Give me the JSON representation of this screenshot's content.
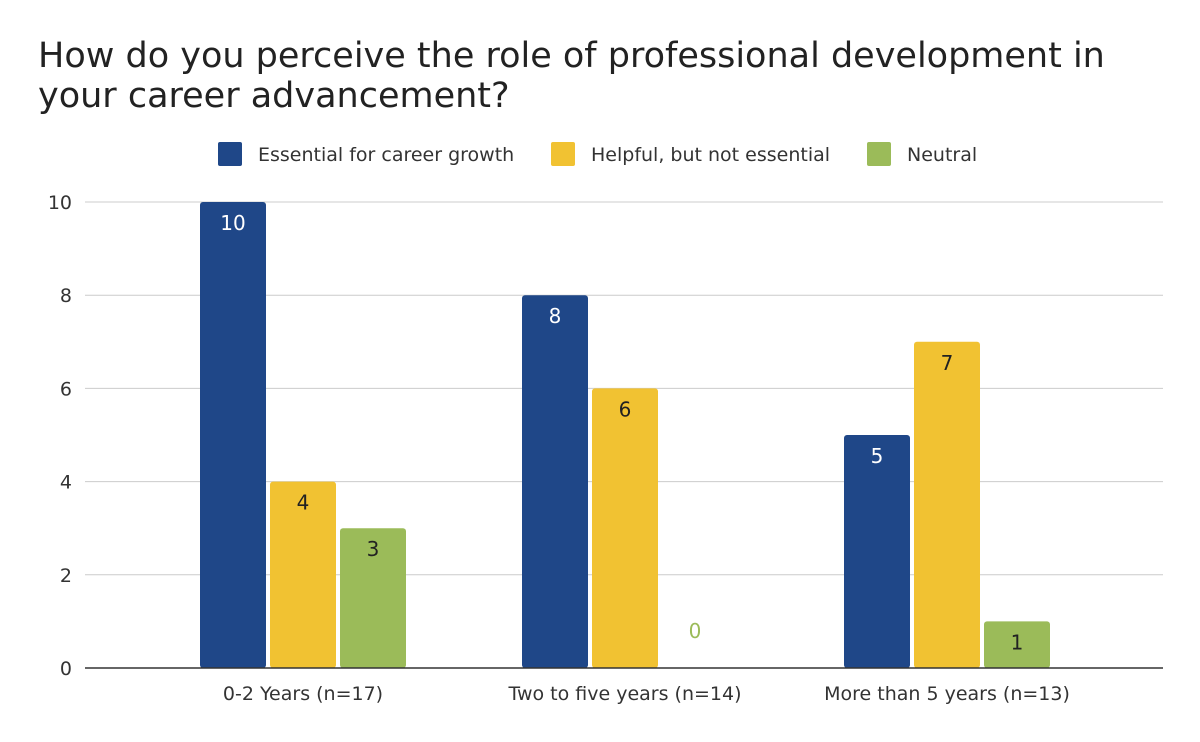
{
  "chart_data": {
    "type": "bar",
    "title": "How do you perceive the role of professional development in your career advancement?",
    "categories": [
      "0-2 Years (n=17)",
      "Two to five years (n=14)",
      "More than 5 years (n=13)"
    ],
    "series": [
      {
        "name": "Essential for career growth",
        "values": [
          10,
          8,
          5
        ],
        "color": "#1f4788",
        "label_color": "#ffffff"
      },
      {
        "name": "Helpful, but not essential",
        "values": [
          4,
          6,
          7
        ],
        "color": "#f1c232",
        "label_color": "#222222"
      },
      {
        "name": "Neutral",
        "values": [
          3,
          0,
          1
        ],
        "color": "#9bbb59",
        "label_color": "#222222"
      }
    ],
    "yticks": [
      0,
      2,
      4,
      6,
      8,
      10
    ],
    "ylim": [
      0,
      10
    ],
    "grid": true,
    "legend_position": "top-center",
    "xlabel": "",
    "ylabel": ""
  }
}
